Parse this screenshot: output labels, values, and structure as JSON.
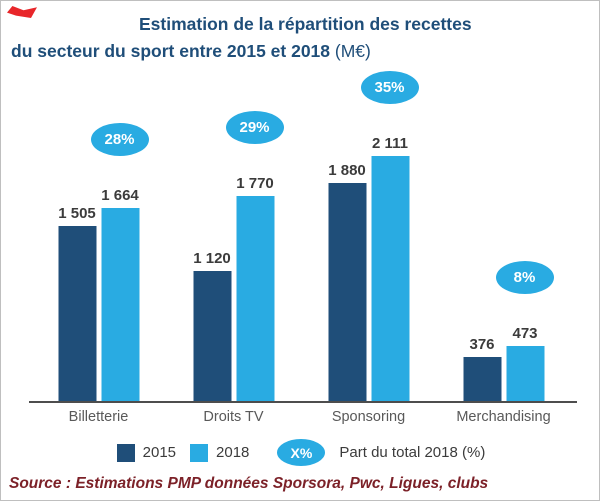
{
  "title": {
    "line1": "Estimation de la répartition des recettes",
    "line2_bold": "du secteur du sport entre 2015 et 2018",
    "line2_suffix": " (M€)"
  },
  "chart_data": {
    "type": "bar",
    "categories": [
      "Billetterie",
      "Droits TV",
      "Sponsoring",
      "Merchandising"
    ],
    "series": [
      {
        "name": "2015",
        "color": "#1F4E79",
        "values": [
          1505,
          1120,
          1880,
          376
        ],
        "labels": [
          "1 505",
          "1 120",
          "1 880",
          "376"
        ]
      },
      {
        "name": "2018",
        "color": "#29ABE2",
        "values": [
          1664,
          1770,
          2111,
          473
        ],
        "labels": [
          "1 664",
          "1 770",
          "2 111",
          "473"
        ]
      }
    ],
    "percent_badges": [
      "28%",
      "29%",
      "35%",
      "8%"
    ],
    "ylim": [
      0,
      2200
    ],
    "grid": false,
    "legend_position": "bottom",
    "title": "Estimation de la répartition des recettes du secteur du sport entre 2015 et 2018 (M€)",
    "xlabel": "",
    "ylabel": ""
  },
  "legend": {
    "item_2015": "2015",
    "item_2018": "2018",
    "badge_label": "X%",
    "badge_caption": "Part du total 2018 (%)"
  },
  "source": "Source : Estimations PMP données Sporsora, Pwc, Ligues, clubs",
  "colors": {
    "dark": "#1F4E79",
    "light": "#29ABE2",
    "title": "#1F4E79",
    "axis": "#4d4d4d",
    "badge": "#29ABE2",
    "source": "#7C2128"
  }
}
